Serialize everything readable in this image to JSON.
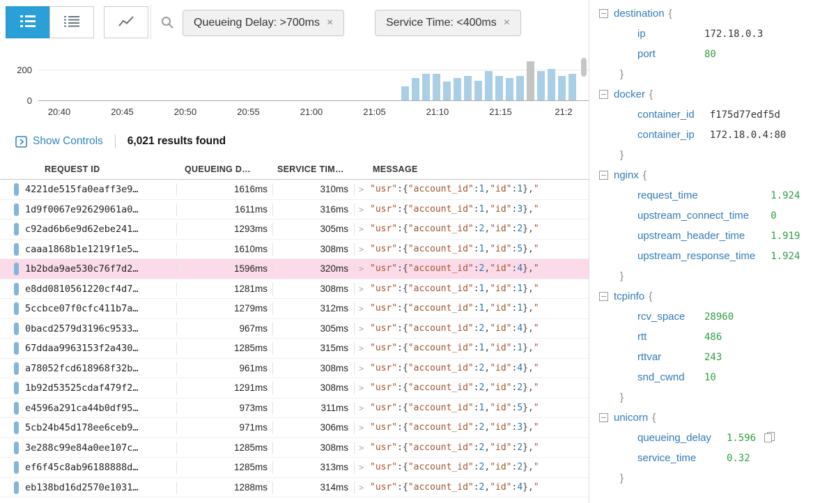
{
  "theme": {
    "active_button": "#2b9fd8",
    "key_blue": "#337ab7",
    "number_green": "#2f9e44",
    "string_maroon": "#a0522d",
    "msg_number_blue": "#2a76b0",
    "selected_row_pink": "#fbdbe9"
  },
  "toolbar": {
    "view_buttons": [
      {
        "name": "list-view",
        "active": true
      },
      {
        "name": "detail-list-view",
        "active": false
      },
      {
        "name": "chart-view",
        "active": false
      }
    ],
    "filters": [
      {
        "label": "Queueing Delay: >700ms",
        "close": "×"
      },
      {
        "label": "Service Time: <400ms",
        "close": "×"
      }
    ]
  },
  "chart_data": {
    "type": "bar",
    "title": "",
    "xlabel": "",
    "ylabel": "",
    "yticks": [
      0,
      200
    ],
    "ylim": [
      0,
      200
    ],
    "grid": true,
    "x_tick_labels": [
      "20:40",
      "20:45",
      "20:50",
      "20:55",
      "21:00",
      "21:05",
      "21:10",
      "21:15",
      "21:2"
    ],
    "bars": [
      90,
      140,
      170,
      170,
      120,
      140,
      155,
      125,
      185,
      155,
      140,
      155,
      250,
      185,
      200,
      155,
      170
    ],
    "selected_bar_index": 12,
    "bar_color": "#a9cee5",
    "selected_bar_color": "#c4c4c4"
  },
  "controls": {
    "show_controls_label": "Show Controls",
    "results_text": "6,021 results found"
  },
  "table": {
    "headers": [
      "REQUEST ID",
      "QUEUEING D…",
      "SERVICE TIM…",
      "MESSAGE"
    ],
    "chevron": ">",
    "selected_row_index": 4,
    "rows": [
      {
        "request_id": "4221de515fa0eaff3e9…",
        "queueing_delay": "1616ms",
        "service_time": "310ms",
        "message": "\"usr\":{\"account_id\":1,\"id\":1},\""
      },
      {
        "request_id": "1d9f0067e92629061a0…",
        "queueing_delay": "1611ms",
        "service_time": "316ms",
        "message": "\"usr\":{\"account_id\":1,\"id\":3},\""
      },
      {
        "request_id": "c92ad6b6e9d62ebe241…",
        "queueing_delay": "1293ms",
        "service_time": "305ms",
        "message": "\"usr\":{\"account_id\":2,\"id\":2},\""
      },
      {
        "request_id": "caaa1868b1e1219f1e5…",
        "queueing_delay": "1610ms",
        "service_time": "308ms",
        "message": "\"usr\":{\"account_id\":1,\"id\":5},\""
      },
      {
        "request_id": "1b2bda9ae530c76f7d2…",
        "queueing_delay": "1596ms",
        "service_time": "320ms",
        "message": "\"usr\":{\"account_id\":2,\"id\":4},\""
      },
      {
        "request_id": "e8dd0810561220cf4d7…",
        "queueing_delay": "1281ms",
        "service_time": "308ms",
        "message": "\"usr\":{\"account_id\":1,\"id\":1},\""
      },
      {
        "request_id": "5ccbce07f0cfc411b7a…",
        "queueing_delay": "1279ms",
        "service_time": "312ms",
        "message": "\"usr\":{\"account_id\":1,\"id\":1},\""
      },
      {
        "request_id": "0bacd2579d3196c9533…",
        "queueing_delay": "967ms",
        "service_time": "305ms",
        "message": "\"usr\":{\"account_id\":2,\"id\":4},\""
      },
      {
        "request_id": "67ddaa9963153f2a430…",
        "queueing_delay": "1285ms",
        "service_time": "315ms",
        "message": "\"usr\":{\"account_id\":1,\"id\":1},\""
      },
      {
        "request_id": "a78052fcd618968f32b…",
        "queueing_delay": "961ms",
        "service_time": "308ms",
        "message": "\"usr\":{\"account_id\":2,\"id\":4},\""
      },
      {
        "request_id": "1b92d53525cdaf479f2…",
        "queueing_delay": "1291ms",
        "service_time": "308ms",
        "message": "\"usr\":{\"account_id\":2,\"id\":2},\""
      },
      {
        "request_id": "e4596a291ca44b0df95…",
        "queueing_delay": "973ms",
        "service_time": "311ms",
        "message": "\"usr\":{\"account_id\":1,\"id\":5},\""
      },
      {
        "request_id": "5cb24b45d178ee6ceb9…",
        "queueing_delay": "971ms",
        "service_time": "306ms",
        "message": "\"usr\":{\"account_id\":2,\"id\":3},\""
      },
      {
        "request_id": "3e288c99e84a0ee107c…",
        "queueing_delay": "1285ms",
        "service_time": "308ms",
        "message": "\"usr\":{\"account_id\":2,\"id\":2},\""
      },
      {
        "request_id": "ef6f45c8ab96188888d…",
        "queueing_delay": "1285ms",
        "service_time": "313ms",
        "message": "\"usr\":{\"account_id\":2,\"id\":2},\""
      },
      {
        "request_id": "eb138bd16d2570e1031…",
        "queueing_delay": "1288ms",
        "service_time": "314ms",
        "message": "\"usr\":{\"account_id\":2,\"id\":4},\""
      }
    ]
  },
  "detail": {
    "brace_open": "{",
    "brace_close": "}",
    "sections": [
      {
        "name": "destination",
        "fields": [
          {
            "key": "ip",
            "value": "172.18.0.3",
            "kind": "str"
          },
          {
            "key": "port",
            "value": "80",
            "kind": "num"
          }
        ]
      },
      {
        "name": "docker",
        "fields": [
          {
            "key": "container_id",
            "value": "f175d77edf5d",
            "kind": "str"
          },
          {
            "key": "container_ip",
            "value": "172.18.0.4:80",
            "kind": "str"
          }
        ]
      },
      {
        "name": "nginx",
        "fields": [
          {
            "key": "request_time",
            "value": "1.924",
            "kind": "num"
          },
          {
            "key": "upstream_connect_time",
            "value": "0",
            "kind": "num"
          },
          {
            "key": "upstream_header_time",
            "value": "1.919",
            "kind": "num"
          },
          {
            "key": "upstream_response_time",
            "value": "1.924",
            "kind": "num"
          }
        ]
      },
      {
        "name": "tcpinfo",
        "fields": [
          {
            "key": "rcv_space",
            "value": "28960",
            "kind": "num"
          },
          {
            "key": "rtt",
            "value": "486",
            "kind": "num"
          },
          {
            "key": "rttvar",
            "value": "243",
            "kind": "num"
          },
          {
            "key": "snd_cwnd",
            "value": "10",
            "kind": "num"
          }
        ]
      },
      {
        "name": "unicorn",
        "fields": [
          {
            "key": "queueing_delay",
            "value": "1.596",
            "kind": "num",
            "copy_icon": true
          },
          {
            "key": "service_time",
            "value": "0.32",
            "kind": "num"
          }
        ]
      }
    ]
  }
}
